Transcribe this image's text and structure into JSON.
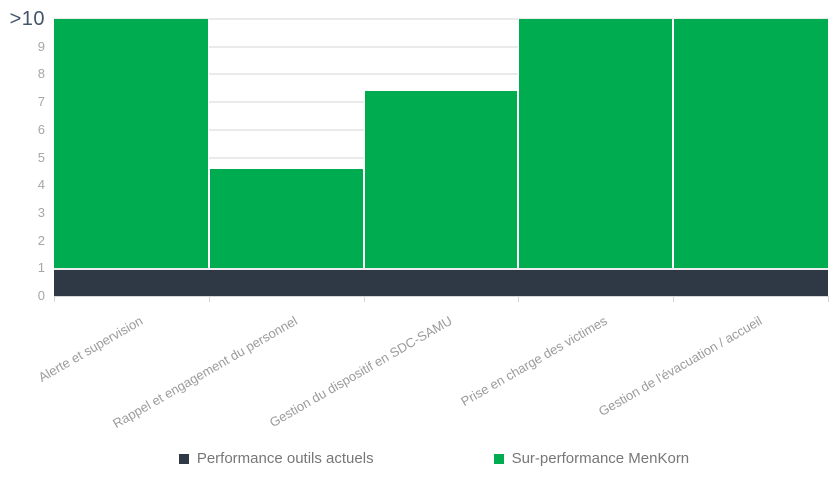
{
  "chart_data": {
    "type": "bar",
    "stacked": true,
    "title": "",
    "xlabel": "",
    "ylabel": "",
    "categories": [
      "Alerte et supervision",
      "Rappel et engagement du personnel",
      "Gestion du dispositif en SDC-SAMU",
      "Prise en charge des victimes",
      "Gestion de l'évacuation / accueil"
    ],
    "series": [
      {
        "name": "Performance outils actuels",
        "color": "#2E3945",
        "values": [
          1,
          1,
          1,
          1,
          1
        ]
      },
      {
        "name": "Sur-performance MenKorn",
        "color": "#00AC50",
        "values": [
          9,
          3.6,
          6.4,
          9,
          9
        ]
      }
    ],
    "stack_totals": [
      10,
      4.6,
      7.4,
      10,
      10
    ],
    "stack_totals_display": [
      ">10",
      "4.6",
      "7.4",
      ">10",
      ">10"
    ],
    "ylim": [
      0,
      10
    ],
    "yticks": [
      "0",
      "1",
      "2",
      "3",
      "4",
      "5",
      "6",
      "7",
      "8",
      "9",
      ">10"
    ],
    "ytick_overflow_label": ">10",
    "grid": true,
    "legend_position": "bottom"
  },
  "colors": {
    "background": "#FFFFFF",
    "series_dark": "#2E3945",
    "series_green": "#00AC50",
    "gridline": "#EAEAEA",
    "axis_line": "#D6D6D6",
    "tick_label": "#A6A6A6",
    "overflow_tick_label": "#44546A",
    "category_label": "#9B9B9B",
    "legend_text": "#777777"
  }
}
